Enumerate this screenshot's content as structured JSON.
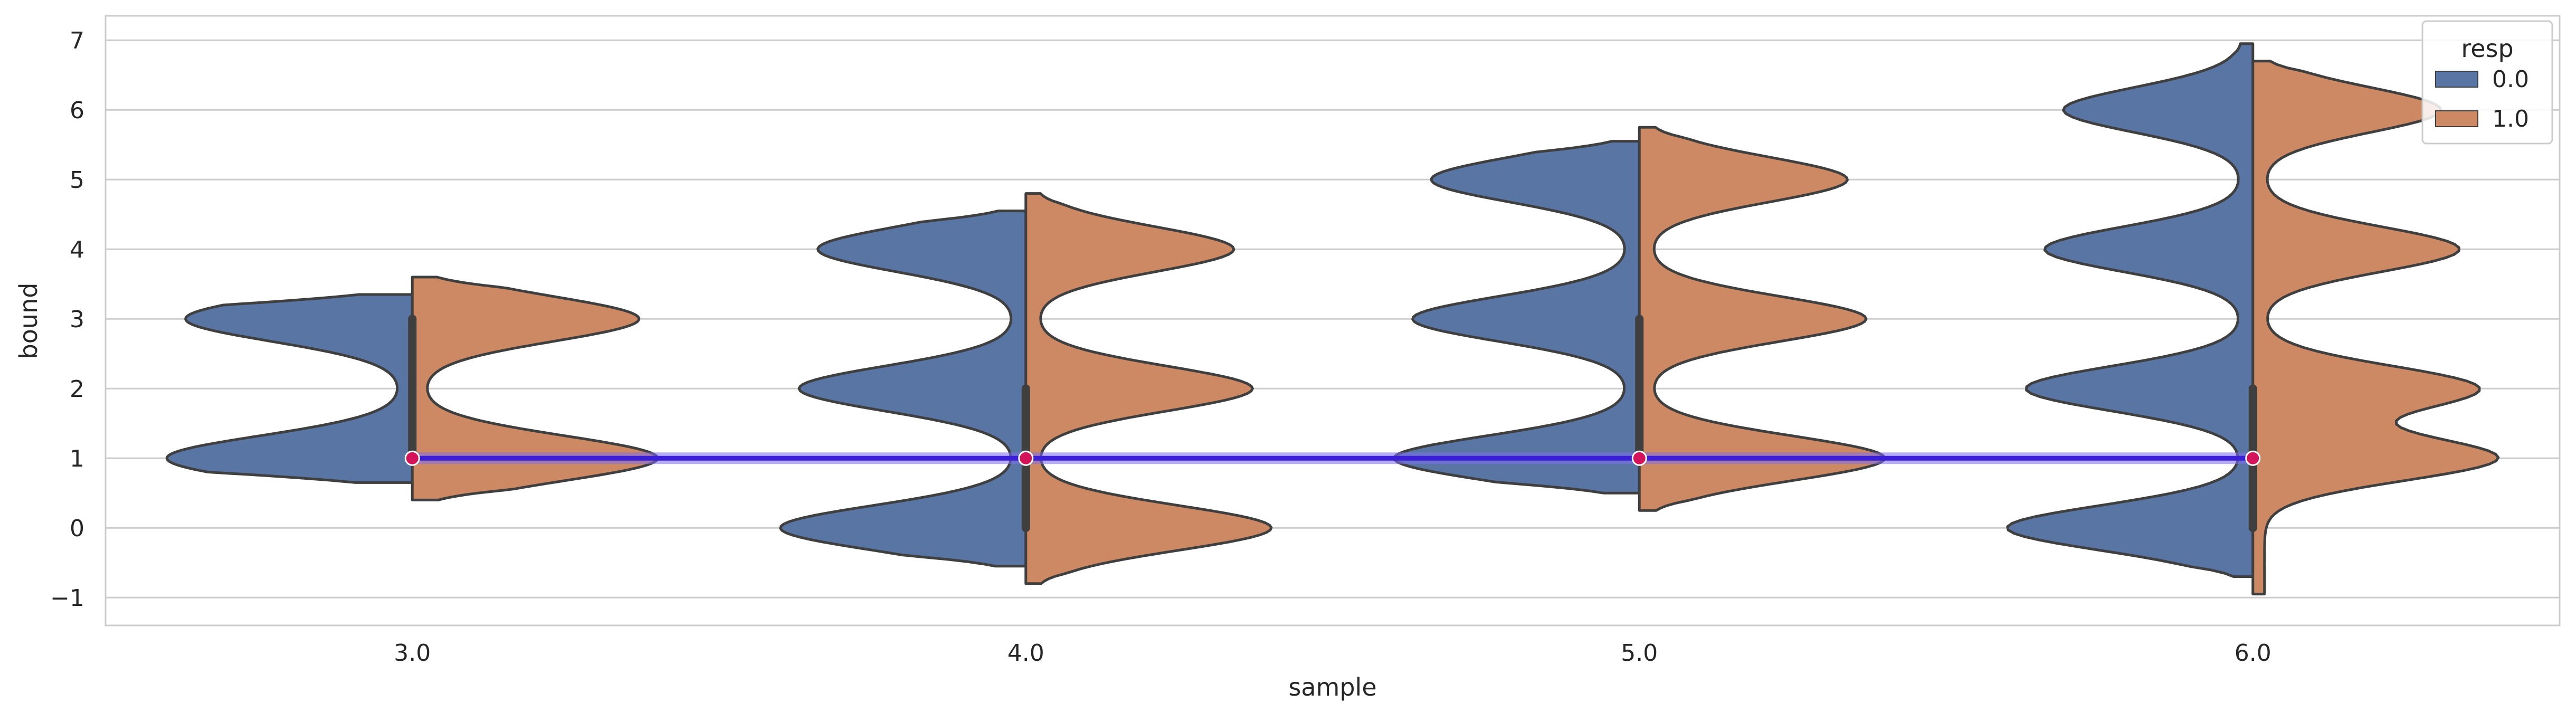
{
  "chart_data": {
    "type": "violin",
    "split": true,
    "title": "",
    "xlabel": "sample",
    "ylabel": "bound",
    "categories": [
      "3.0",
      "4.0",
      "5.0",
      "6.0"
    ],
    "x_values": [
      3.0,
      4.0,
      5.0,
      6.0
    ],
    "ylim": [
      -1.4,
      7.35
    ],
    "yticks": [
      -1,
      0,
      1,
      2,
      3,
      4,
      5,
      6,
      7
    ],
    "ytick_labels": [
      "−1",
      "0",
      "1",
      "2",
      "3",
      "4",
      "5",
      "6",
      "7"
    ],
    "grid": true,
    "legend": {
      "title": "resp",
      "placement": "top-right"
    },
    "series": [
      {
        "name": "0.0",
        "color": "#5975a4",
        "side": "left",
        "violins": [
          {
            "category": "3.0",
            "ymin": 0.65,
            "ymax": 3.35,
            "modes": [
              1,
              3
            ]
          },
          {
            "category": "4.0",
            "ymin": -0.55,
            "ymax": 4.55,
            "modes": [
              0,
              2,
              4
            ]
          },
          {
            "category": "5.0",
            "ymin": 0.5,
            "ymax": 5.55,
            "modes": [
              1,
              3,
              5
            ]
          },
          {
            "category": "6.0",
            "ymin": -0.7,
            "ymax": 6.95,
            "modes": [
              0,
              2,
              4,
              6
            ]
          }
        ]
      },
      {
        "name": "1.0",
        "color": "#cc8963",
        "side": "right",
        "violins": [
          {
            "category": "3.0",
            "ymin": 0.4,
            "ymax": 3.6,
            "modes": [
              1,
              3
            ]
          },
          {
            "category": "4.0",
            "ymin": -0.8,
            "ymax": 4.8,
            "modes": [
              0,
              2,
              4
            ]
          },
          {
            "category": "5.0",
            "ymin": 0.25,
            "ymax": 5.75,
            "modes": [
              1,
              3,
              5
            ]
          },
          {
            "category": "6.0",
            "ymin": -0.95,
            "ymax": 6.7,
            "modes": [
              1,
              2,
              4,
              6
            ]
          }
        ]
      }
    ],
    "box": [
      {
        "category": "3.0",
        "q1": 1,
        "median": 1,
        "q3": 3
      },
      {
        "category": "4.0",
        "q1": 0,
        "median": 1,
        "q3": 2
      },
      {
        "category": "5.0",
        "q1": 1,
        "median": 1,
        "q3": 3
      },
      {
        "category": "6.0",
        "q1": 0,
        "median": 1,
        "q3": 2
      }
    ],
    "overlay_line": {
      "x": [
        3.0,
        4.0,
        5.0,
        6.0
      ],
      "y": [
        1,
        1,
        1,
        1
      ],
      "line_color": "#3a1fd6",
      "marker_color": "#d4145a"
    }
  }
}
